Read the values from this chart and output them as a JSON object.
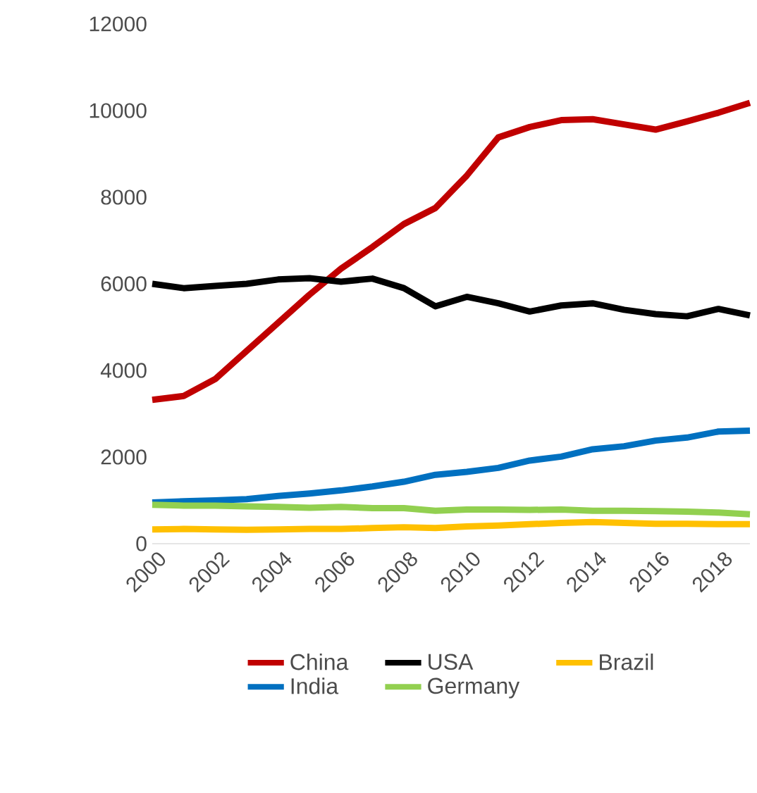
{
  "chart_data": {
    "type": "line",
    "x": [
      2000,
      2001,
      2002,
      2003,
      2004,
      2005,
      2006,
      2007,
      2008,
      2009,
      2010,
      2011,
      2012,
      2013,
      2014,
      2015,
      2016,
      2017,
      2018,
      2019
    ],
    "xlim": [
      2000,
      2019
    ],
    "xticks": [
      2000,
      2002,
      2004,
      2006,
      2008,
      2010,
      2012,
      2014,
      2016,
      2018
    ],
    "ylim": [
      0,
      12000
    ],
    "yticks": [
      0,
      2000,
      4000,
      6000,
      8000,
      10000,
      12000
    ],
    "grid": false,
    "legend": "bottom",
    "marker": "none",
    "line_style": "solid",
    "series": [
      {
        "name": "China",
        "color": "#c00000",
        "values": [
          3320,
          3410,
          3800,
          4450,
          5100,
          5750,
          6350,
          6850,
          7380,
          7750,
          8500,
          9380,
          9620,
          9780,
          9800,
          9680,
          9560,
          9750,
          9950,
          10180
        ]
      },
      {
        "name": "USA",
        "color": "#000000",
        "values": [
          6000,
          5900,
          5950,
          6000,
          6100,
          6130,
          6050,
          6120,
          5900,
          5480,
          5700,
          5550,
          5360,
          5500,
          5550,
          5400,
          5300,
          5250,
          5420,
          5270
        ]
      },
      {
        "name": "Brazil",
        "color": "#ffc000",
        "values": [
          330,
          340,
          330,
          320,
          330,
          340,
          340,
          360,
          380,
          360,
          400,
          420,
          450,
          480,
          500,
          480,
          460,
          460,
          450,
          450
        ]
      },
      {
        "name": "India",
        "color": "#0070c0",
        "values": [
          950,
          980,
          1000,
          1030,
          1100,
          1160,
          1230,
          1320,
          1430,
          1590,
          1660,
          1750,
          1920,
          2010,
          2180,
          2250,
          2380,
          2450,
          2590,
          2610
        ]
      },
      {
        "name": "Germany",
        "color": "#92d050",
        "values": [
          900,
          880,
          880,
          860,
          850,
          830,
          850,
          820,
          820,
          760,
          790,
          790,
          780,
          790,
          760,
          760,
          750,
          740,
          720,
          680
        ]
      }
    ]
  }
}
